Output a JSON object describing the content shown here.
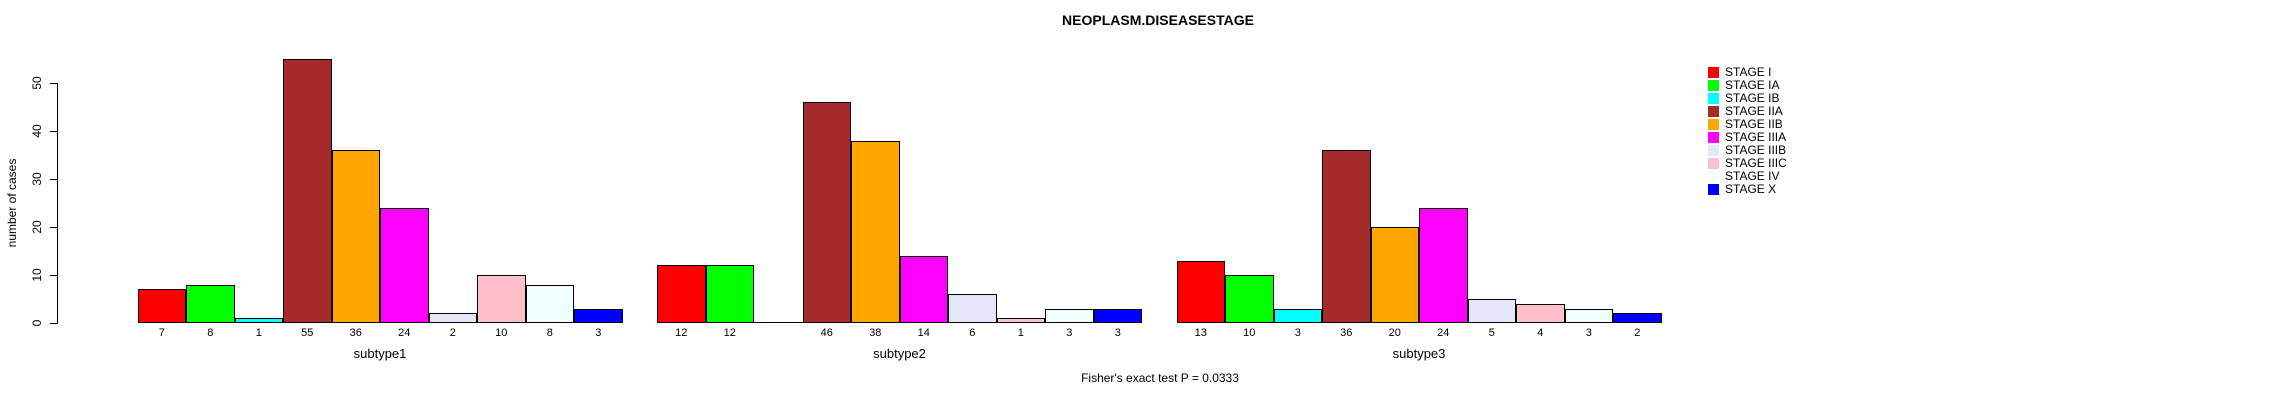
{
  "chart_data": {
    "type": "bar",
    "title": "NEOPLASM.DISEASESTAGE",
    "xlabel": "",
    "ylabel": "number of cases",
    "ylim": [
      0,
      50
    ],
    "yticks": [
      0,
      10,
      20,
      30,
      40,
      50
    ],
    "grid": false,
    "legend_position": "right",
    "annotation": "Fisher's exact test P = 0.0333",
    "stages": [
      {
        "label": "STAGE I",
        "color": "#FF0000"
      },
      {
        "label": "STAGE IA",
        "color": "#00FF00"
      },
      {
        "label": "STAGE IB",
        "color": "#00FFFF"
      },
      {
        "label": "STAGE IIA",
        "color": "#A52A2A"
      },
      {
        "label": "STAGE IIB",
        "color": "#FFA500"
      },
      {
        "label": "STAGE IIIA",
        "color": "#FF00FF"
      },
      {
        "label": "STAGE IIIB",
        "color": "#E6E6FA"
      },
      {
        "label": "STAGE IIIC",
        "color": "#FFC0CB"
      },
      {
        "label": "STAGE IV",
        "color": "#F0FFFF"
      },
      {
        "label": "STAGE X",
        "color": "#0000FF"
      }
    ],
    "groups": [
      {
        "label": "subtype1",
        "values": [
          7,
          8,
          1,
          55,
          36,
          24,
          2,
          10,
          8,
          3
        ]
      },
      {
        "label": "subtype2",
        "values": [
          12,
          12,
          0,
          46,
          38,
          14,
          6,
          1,
          3,
          3
        ]
      },
      {
        "label": "subtype3",
        "values": [
          13,
          10,
          3,
          36,
          20,
          24,
          5,
          4,
          3,
          2
        ]
      }
    ]
  }
}
